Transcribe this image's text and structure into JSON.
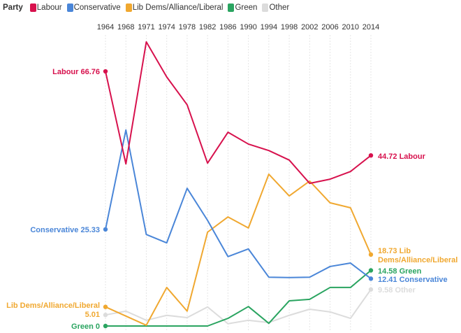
{
  "chart_data": {
    "type": "line",
    "legend_title": "Party",
    "legend_position": "top-left",
    "x": [
      "1964",
      "1968",
      "1971",
      "1974",
      "1978",
      "1982",
      "1986",
      "1990",
      "1994",
      "1998",
      "2002",
      "2006",
      "2010",
      "2014"
    ],
    "ylim": [
      0,
      75
    ],
    "grid": "vertical",
    "series": [
      {
        "name": "Labour",
        "color": "#d7114d",
        "values": [
          66.76,
          42.5,
          74.5,
          65.3,
          58.0,
          42.7,
          50.8,
          47.7,
          46.0,
          43.5,
          37.4,
          38.5,
          40.5,
          44.72
        ],
        "start_label": "Labour 66.76",
        "end_label": "44.72 Labour"
      },
      {
        "name": "Conservative",
        "color": "#4a86d8",
        "values": [
          25.33,
          51.4,
          24.0,
          21.8,
          36.1,
          27.7,
          18.2,
          20.2,
          12.8,
          12.7,
          12.8,
          15.6,
          16.5,
          12.41
        ],
        "start_label": "Conservative 25.33",
        "end_label": "12.41 Conservative"
      },
      {
        "name": "Lib Dems/Alliance/Liberal",
        "color": "#f0a830",
        "values": [
          5.01,
          2.6,
          0.2,
          10.1,
          3.9,
          24.6,
          28.6,
          25.7,
          39.8,
          34.1,
          38.0,
          32.3,
          31.0,
          18.73
        ],
        "start_label": "Lib Dems/Alliance/Liberal 5.01",
        "end_label": "18.73 Lib Dems/Alliance/Liberal"
      },
      {
        "name": "Green",
        "color": "#2aa460",
        "values": [
          0,
          0,
          0,
          0,
          0,
          0,
          2.0,
          5.1,
          0.7,
          6.6,
          7.0,
          10.1,
          10.1,
          14.58
        ],
        "start_label": "Green 0",
        "end_label": "14.58 Green"
      },
      {
        "name": "Other",
        "color": "#dcdcdc",
        "values": [
          2.9,
          3.9,
          1.5,
          2.8,
          2.2,
          5.0,
          0.6,
          1.5,
          0.9,
          2.8,
          4.4,
          3.7,
          2.0,
          9.58
        ],
        "start_label": "",
        "end_label": "9.58 Other"
      }
    ]
  }
}
